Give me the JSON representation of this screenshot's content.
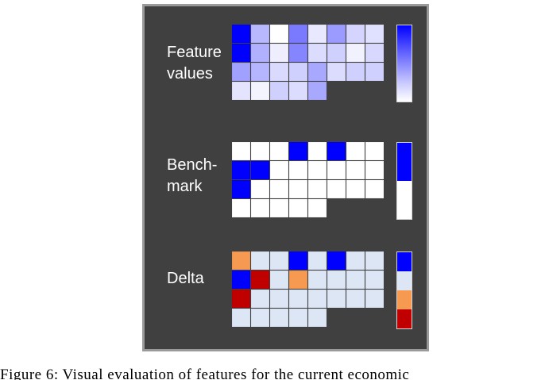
{
  "panels": [
    {
      "id": "feature-values",
      "label": "Feature\nvalues",
      "rows": [
        [
          "#0000ff",
          "#b8b8ff",
          "#ffffff",
          "#7a7aff",
          "#e8e8ff",
          "#9a9aff",
          "#d4d4ff",
          "#e0e0ff"
        ],
        [
          "#0000ff",
          "#b0b0ff",
          "#eeeeff",
          "#8585ff",
          "#dcdcff",
          "#d0d0ff",
          "#f2f2ff",
          "#d8d8ff"
        ],
        [
          "#a0a0ff",
          "#b4b4ff",
          "#dadaff",
          "#d0d0ff",
          "#a8a8ff",
          "#dcdcff",
          "#d0d0ff",
          "#d0d0ff"
        ],
        [
          "#e4e4ff",
          "#f4f4ff",
          "#d0d0ff",
          "#dcdcff",
          "#a8a8ff"
        ]
      ],
      "colorbar": "gradient"
    },
    {
      "id": "benchmark",
      "label": "Bench-\nmark",
      "rows": [
        [
          "#ffffff",
          "#ffffff",
          "#ffffff",
          "#0000ff",
          "#ffffff",
          "#0000ff",
          "#ffffff",
          "#ffffff"
        ],
        [
          "#0000ff",
          "#0000ff",
          "#ffffff",
          "#ffffff",
          "#ffffff",
          "#ffffff",
          "#ffffff",
          "#ffffff"
        ],
        [
          "#0000ff",
          "#ffffff",
          "#ffffff",
          "#ffffff",
          "#ffffff",
          "#ffffff",
          "#ffffff",
          "#ffffff"
        ],
        [
          "#ffffff",
          "#ffffff",
          "#ffffff",
          "#ffffff",
          "#ffffff"
        ]
      ],
      "colorbar": [
        "#0000ff",
        "#ffffff"
      ]
    },
    {
      "id": "delta",
      "label": "Delta",
      "rows": [
        [
          "#f59a50",
          "#dce6f5",
          "#dce6f5",
          "#0000ff",
          "#dce6f5",
          "#0000ff",
          "#dce6f5",
          "#dce6f5"
        ],
        [
          "#0000ff",
          "#c00000",
          "#dce6f5",
          "#f59a50",
          "#dce6f5",
          "#dce6f5",
          "#dce6f5",
          "#dce6f5"
        ],
        [
          "#c00000",
          "#dce6f5",
          "#dce6f5",
          "#dce6f5",
          "#dce6f5",
          "#dce6f5",
          "#dce6f5",
          "#dce6f5"
        ],
        [
          "#dce6f5",
          "#dce6f5",
          "#dce6f5",
          "#dce6f5",
          "#dce6f5"
        ]
      ],
      "colorbar": [
        "#0000ff",
        "#dce6f5",
        "#f59a50",
        "#c00000"
      ]
    }
  ],
  "colors": {
    "frame_background": "#404040",
    "frame_border": "#9a9a9a",
    "label_text": "#ffffff"
  },
  "caption": "Figure 6: Visual evaluation of features for the current economic"
}
